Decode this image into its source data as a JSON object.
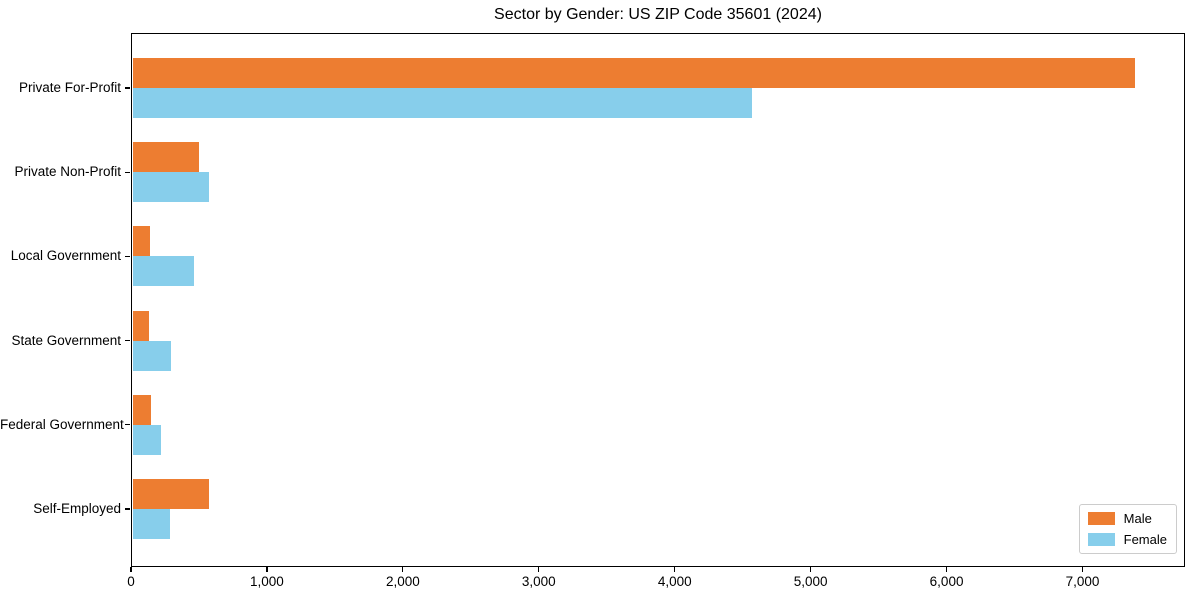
{
  "chart_data": {
    "type": "bar",
    "orientation": "horizontal",
    "title": "Sector by Gender: US ZIP Code 35601 (2024)",
    "categories": [
      "Private For-Profit",
      "Private Non-Profit",
      "Local Government",
      "State Government",
      "Federal Government",
      "Self-Employed"
    ],
    "series": [
      {
        "name": "Male",
        "color": "#ED7D31",
        "values": [
          7385,
          500,
          140,
          130,
          145,
          575
        ]
      },
      {
        "name": "Female",
        "color": "#87CEEB",
        "values": [
          4570,
          575,
          465,
          295,
          220,
          290
        ]
      }
    ],
    "xlim": [
      0,
      7754
    ],
    "x_ticks": [
      0,
      1000,
      2000,
      3000,
      4000,
      5000,
      6000,
      7000
    ],
    "x_tick_labels": [
      "0",
      "1,000",
      "2,000",
      "3,000",
      "4,000",
      "5,000",
      "6,000",
      "7,000"
    ],
    "grid": false,
    "legend_position": "lower right",
    "axis_color": "#000000",
    "legend_border_color": "#cccccc"
  }
}
